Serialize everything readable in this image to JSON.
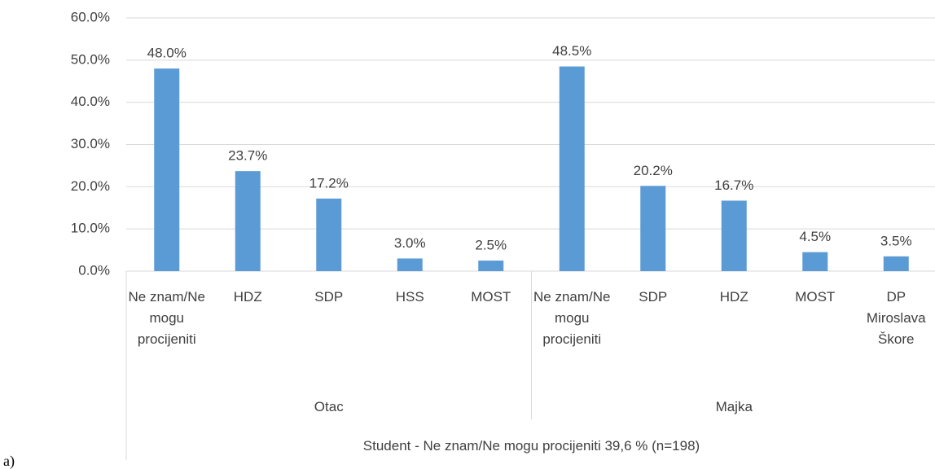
{
  "panel_label": "a)",
  "chart_data": {
    "type": "bar",
    "color": "#5b9bd5",
    "ylim": [
      0,
      60
    ],
    "yticks": [
      {
        "value": 0,
        "label": "0.0%"
      },
      {
        "value": 10,
        "label": "10.0%"
      },
      {
        "value": 20,
        "label": "20.0%"
      },
      {
        "value": 30,
        "label": "30.0%"
      },
      {
        "value": 40,
        "label": "40.0%"
      },
      {
        "value": 50,
        "label": "50.0%"
      },
      {
        "value": 60,
        "label": "60.0%"
      }
    ],
    "grid": true,
    "groups": [
      {
        "name": "Otac",
        "categories": [
          "Ne znam/Ne mogu procijeniti",
          "HDZ",
          "SDP",
          "HSS",
          "MOST"
        ],
        "values": [
          48.0,
          23.7,
          17.2,
          3.0,
          2.5
        ],
        "value_labels": [
          "48.0%",
          "23.7%",
          "17.2%",
          "3.0%",
          "2.5%"
        ]
      },
      {
        "name": "Majka",
        "categories": [
          "Ne znam/Ne mogu procijeniti",
          "SDP",
          "HDZ",
          "MOST",
          "DP Miroslava Škore"
        ],
        "values": [
          48.5,
          20.2,
          16.7,
          4.5,
          3.5
        ],
        "value_labels": [
          "48.5%",
          "20.2%",
          "16.7%",
          "4.5%",
          "3.5%"
        ]
      }
    ],
    "xlabel": "Student - Ne znam/Ne mogu procijeniti 39,6 % (n=198)"
  }
}
